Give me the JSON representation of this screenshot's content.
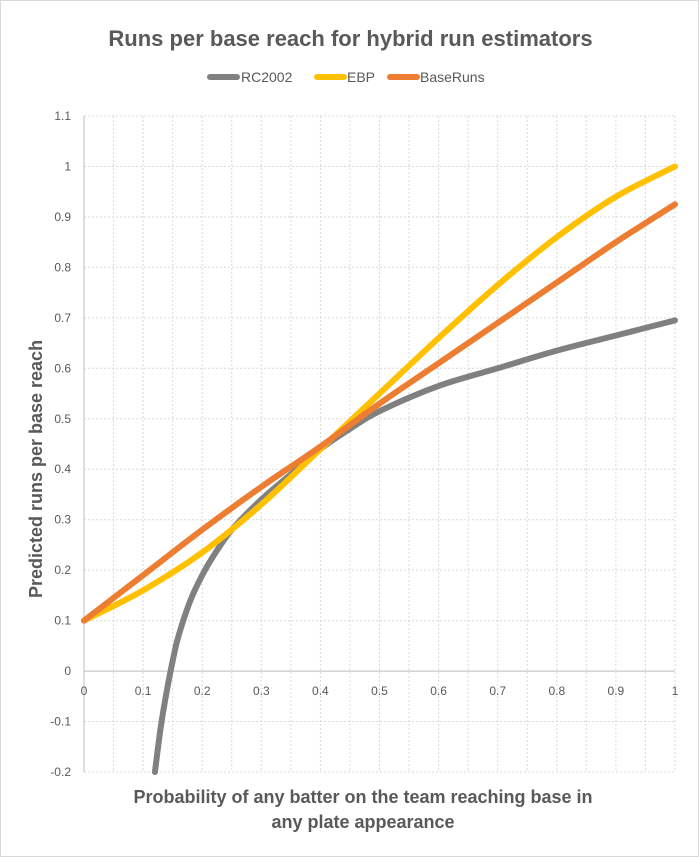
{
  "chart_data": {
    "type": "line",
    "title": "Runs per base reach for hybrid run estimators",
    "xlabel_lines": [
      "Probability of any batter on the team reaching base in",
      "any plate appearance"
    ],
    "ylabel": "Predicted runs per base reach",
    "xlim": [
      0,
      1
    ],
    "ylim": [
      -0.2,
      1.1
    ],
    "x_ticks": [
      "0",
      "0.1",
      "0.2",
      "0.3",
      "0.4",
      "0.5",
      "0.6",
      "0.7",
      "0.8",
      "0.9",
      "1"
    ],
    "y_ticks": [
      "-0.2",
      "-0.1",
      "0",
      "0.1",
      "0.2",
      "0.3",
      "0.4",
      "0.5",
      "0.6",
      "0.7",
      "0.8",
      "0.9",
      "1",
      "1.1"
    ],
    "legend_position": "top",
    "series": [
      {
        "name": "RC2002",
        "color": "#808080",
        "x": [
          0.12,
          0.13,
          0.14,
          0.15,
          0.16,
          0.18,
          0.2,
          0.22,
          0.25,
          0.3,
          0.35,
          0.4,
          0.45,
          0.5,
          0.6,
          0.7,
          0.8,
          0.9,
          1.0
        ],
        "y": [
          -0.2,
          -0.11,
          -0.04,
          0.02,
          0.07,
          0.14,
          0.19,
          0.23,
          0.28,
          0.34,
          0.39,
          0.44,
          0.48,
          0.515,
          0.565,
          0.6,
          0.635,
          0.665,
          0.695
        ]
      },
      {
        "name": "EBP",
        "color": "#FFC000",
        "x": [
          0,
          0.1,
          0.2,
          0.3,
          0.4,
          0.5,
          0.6,
          0.7,
          0.8,
          0.9,
          1.0
        ],
        "y": [
          0.1,
          0.16,
          0.235,
          0.33,
          0.44,
          0.55,
          0.66,
          0.765,
          0.86,
          0.94,
          1.0
        ]
      },
      {
        "name": "BaseRuns",
        "color": "#ED7D31",
        "x": [
          0,
          0.1,
          0.2,
          0.3,
          0.4,
          0.5,
          0.6,
          0.7,
          0.8,
          0.9,
          1.0
        ],
        "y": [
          0.1,
          0.19,
          0.28,
          0.365,
          0.445,
          0.53,
          0.61,
          0.69,
          0.77,
          0.85,
          0.925
        ]
      }
    ]
  }
}
